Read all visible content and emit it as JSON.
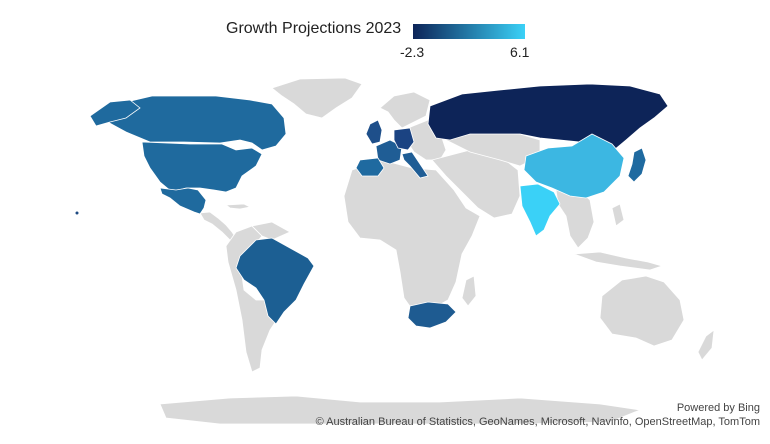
{
  "legend": {
    "title": "Growth Projections 2023",
    "min_label": "-2.3",
    "max_label": "6.1",
    "min_value": -2.3,
    "max_value": 6.1,
    "color_low": "#0d2458",
    "color_high": "#3ad1f7"
  },
  "map": {
    "background_land_color": "#d9d9d9",
    "border_color": "#ffffff",
    "countries": [
      {
        "name": "Canada",
        "color": "#1f6a9e"
      },
      {
        "name": "United States",
        "color": "#1f6a9e"
      },
      {
        "name": "Mexico",
        "color": "#1f6a9e"
      },
      {
        "name": "Brazil",
        "color": "#1c5f93"
      },
      {
        "name": "United Kingdom",
        "color": "#1e4f8a"
      },
      {
        "name": "France",
        "color": "#1f5d95"
      },
      {
        "name": "Germany",
        "color": "#1b4382"
      },
      {
        "name": "Italy",
        "color": "#1f5d95"
      },
      {
        "name": "Spain",
        "color": "#1f6aa0"
      },
      {
        "name": "Russia",
        "color": "#0d2458"
      },
      {
        "name": "China",
        "color": "#3cb7e2"
      },
      {
        "name": "India",
        "color": "#3ad1f7"
      },
      {
        "name": "Japan",
        "color": "#1f6aa0"
      },
      {
        "name": "South Africa",
        "color": "#1e5b91"
      }
    ]
  },
  "attribution": {
    "powered_by": "Powered by Bing",
    "sources": "© Australian Bureau of Statistics, GeoNames, Microsoft, Navinfo, OpenStreetMap, TomTom"
  }
}
